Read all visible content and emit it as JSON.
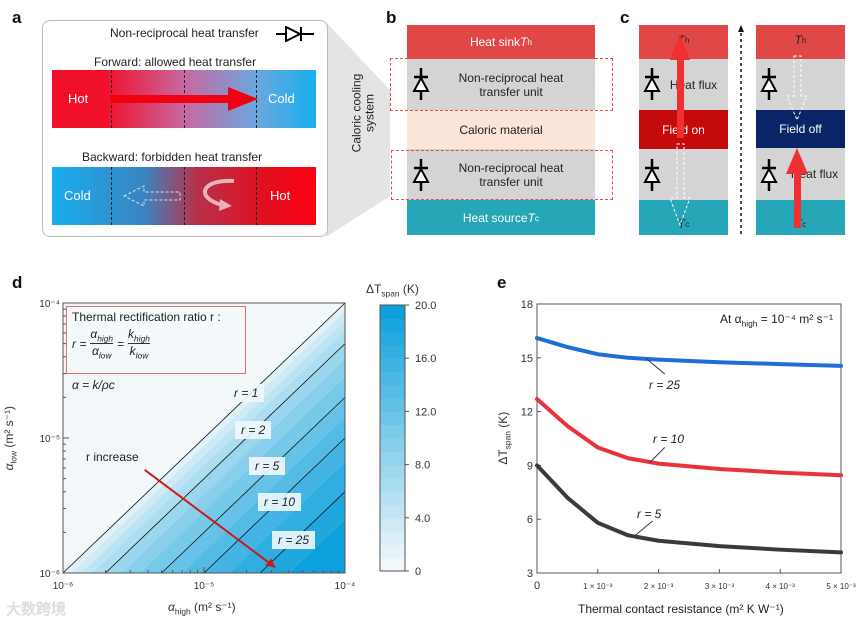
{
  "panel_labels": {
    "a": "a",
    "b": "b",
    "c": "c",
    "d": "d",
    "e": "e"
  },
  "panel_a": {
    "legend": "Non-reciprocal heat transfer",
    "forward_title": "Forward: allowed heat transfer",
    "forward_left": "Hot",
    "forward_right": "Cold",
    "backward_title": "Backward: forbidden heat transfer",
    "backward_left": "Cold",
    "backward_right": "Hot",
    "callout": "Caloric cooling",
    "callout2": "system"
  },
  "panel_b": {
    "heat_sink": "Heat sink ",
    "heat_sink_T": "T",
    "heat_sink_sub": "h",
    "unit_line1": "Non-reciprocal heat",
    "unit_line2": "transfer unit",
    "caloric": "Caloric material",
    "heat_source": "Heat source ",
    "heat_source_T": "T",
    "heat_source_sub": "c"
  },
  "panel_c": {
    "T": "T",
    "h": "h",
    "c": "c",
    "field_on": "Field on",
    "field_off": "Field off",
    "heat_flux": "Heat flux"
  },
  "colors": {
    "hot": "#e04848",
    "cold": "#26a7b8",
    "unit": "#d4d4d4",
    "caloric": "#fbe5d8",
    "field_on": "#c40a0a",
    "field_off": "#0a2468"
  },
  "chart_data": [
    {
      "type": "heatmap",
      "xlabel": {
        "main": "α",
        "sub": "high",
        "rest": " (m² s⁻¹)"
      },
      "ylabel": {
        "main": "α",
        "sub": "low",
        "rest": " (m² s⁻¹)"
      },
      "xscale": "log",
      "yscale": "log",
      "xlim": [
        1e-06,
        0.0001
      ],
      "ylim": [
        1e-06,
        0.0001
      ],
      "xticks": [
        "10⁻⁶",
        "10⁻⁵",
        "10⁻⁴"
      ],
      "yticks": [
        "10⁻⁶",
        "10⁻⁵",
        "10⁻⁴"
      ],
      "contours": [
        {
          "r": 1,
          "label": "r = 1"
        },
        {
          "r": 2,
          "label": "r = 2"
        },
        {
          "r": 5,
          "label": "r = 5"
        },
        {
          "r": 10,
          "label": "r = 10"
        },
        {
          "r": 25,
          "label": "r = 25"
        }
      ],
      "annotation_box": {
        "title": "Thermal rectification ratio r :",
        "eq_r": "r =",
        "a_high": "α",
        "a_high_sub": "high",
        "a_low": "α",
        "a_low_sub": "low",
        "eq": "=",
        "k_high": "k",
        "k_high_sub": "high",
        "k_low": "k",
        "k_low_sub": "low"
      },
      "alpha_def": "α = k/ρc",
      "arrow": {
        "label": "r increase",
        "from": [
          3.8e-06,
          5.8e-06
        ],
        "to": [
          3.2e-05,
          1.1e-06
        ]
      },
      "colorbar": {
        "title_main": "ΔT",
        "title_sub": "span",
        "title_rest": " (K)",
        "range": [
          0,
          20
        ],
        "ticks": [
          "0",
          "4.0",
          "8.0",
          "12.0",
          "16.0",
          "20.0"
        ],
        "low_color": "#f2f8fa",
        "high_color": "#0ea0dc"
      }
    },
    {
      "type": "line",
      "xlabel": "Thermal contact resistance (m² K W⁻¹)",
      "ylabel": {
        "main": "ΔT",
        "sub": "span",
        "rest": " (K)"
      },
      "xlim": [
        0,
        0.005
      ],
      "ylim": [
        3,
        18
      ],
      "xticks": [
        "0",
        "1 × 10⁻³",
        "2 × 10⁻³",
        "3 × 10⁻³",
        "4 × 10⁻³",
        "5 × 10⁻³"
      ],
      "yticks": [
        "3",
        "6",
        "9",
        "12",
        "15",
        "18"
      ],
      "annotation": {
        "pre": "At α",
        "sub": "high",
        "post": " = 10⁻⁴ m² s⁻¹"
      },
      "x": [
        0,
        0.0005,
        0.001,
        0.0015,
        0.002,
        0.003,
        0.004,
        0.005
      ],
      "series": [
        {
          "name": "r = 25",
          "color": "#1f6ed8",
          "values": [
            16.1,
            15.6,
            15.2,
            15.0,
            14.9,
            14.75,
            14.65,
            14.55
          ]
        },
        {
          "name": "r = 10",
          "color": "#e8333a",
          "values": [
            12.7,
            11.2,
            10.0,
            9.4,
            9.1,
            8.8,
            8.6,
            8.45
          ]
        },
        {
          "name": "r = 5",
          "color": "#3a3a3a",
          "values": [
            9.0,
            7.2,
            5.8,
            5.1,
            4.8,
            4.5,
            4.3,
            4.15
          ]
        }
      ]
    }
  ],
  "watermark": "大数跨境"
}
